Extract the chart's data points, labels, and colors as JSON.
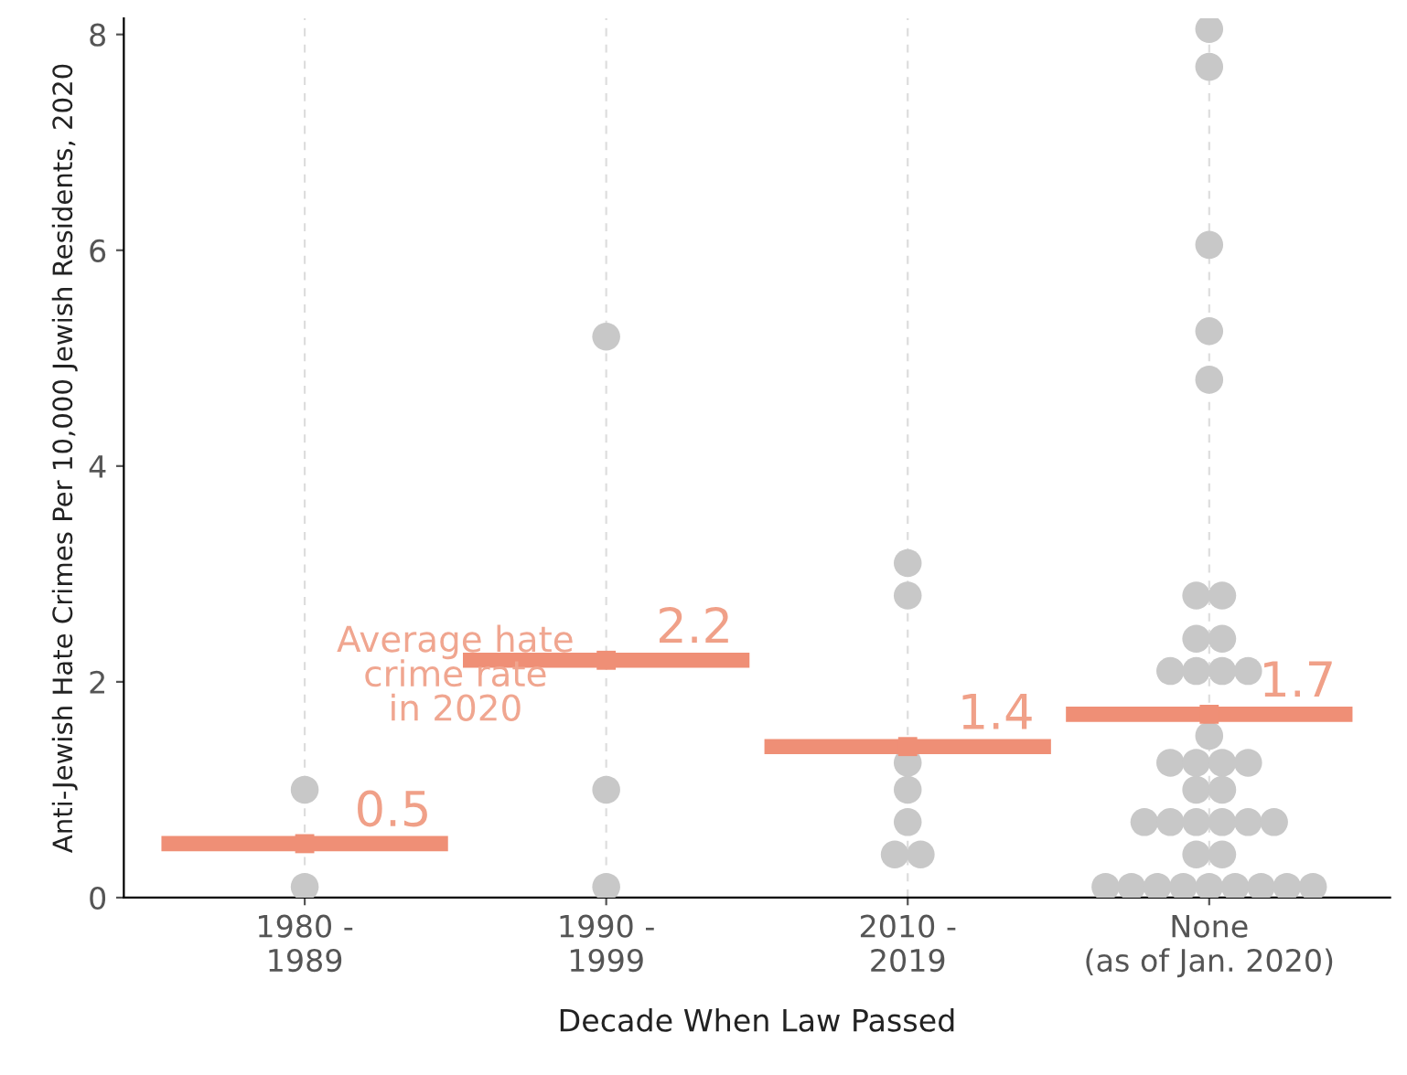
{
  "chart_data": {
    "type": "scatter",
    "xlabel": "Decade When Law Passed",
    "ylabel": "Anti-Jewish Hate Crimes Per 10,000 Jewish Residents, 2020",
    "categories": [
      "1980 -\n1989",
      "1990 -\n1999",
      "2010 -\n2019",
      "None\n(as of Jan. 2020)"
    ],
    "ylim": [
      0,
      8.15
    ],
    "yticks": [
      0,
      2,
      4,
      6,
      8
    ],
    "grid": "x",
    "annotations": [
      "Average hate\ncrime rate\nin 2020"
    ],
    "series": [
      {
        "type": "scatter",
        "color": "#c8c8c8",
        "marker": "circle",
        "x": [
          "1980 -\n1989",
          "1980 -\n1989",
          "1990 -\n1999",
          "1990 -\n1999",
          "1990 -\n1999",
          "2010 -\n2019",
          "2010 -\n2019",
          "2010 -\n2019",
          "2010 -\n2019",
          "2010 -\n2019",
          "2010 -\n2019",
          "2010 -\n2019",
          "None\n(as of Jan. 2020)",
          "None\n(as of Jan. 2020)",
          "None\n(as of Jan. 2020)",
          "None\n(as of Jan. 2020)",
          "None\n(as of Jan. 2020)",
          "None\n(as of Jan. 2020)",
          "None\n(as of Jan. 2020)",
          "None\n(as of Jan. 2020)",
          "None\n(as of Jan. 2020)",
          "None\n(as of Jan. 2020)",
          "None\n(as of Jan. 2020)",
          "None\n(as of Jan. 2020)",
          "None\n(as of Jan. 2020)",
          "None\n(as of Jan. 2020)",
          "None\n(as of Jan. 2020)",
          "None\n(as of Jan. 2020)",
          "None\n(as of Jan. 2020)",
          "None\n(as of Jan. 2020)",
          "None\n(as of Jan. 2020)",
          "None\n(as of Jan. 2020)",
          "None\n(as of Jan. 2020)",
          "None\n(as of Jan. 2020)",
          "None\n(as of Jan. 2020)",
          "None\n(as of Jan. 2020)",
          "None\n(as of Jan. 2020)",
          "None\n(as of Jan. 2020)",
          "None\n(as of Jan. 2020)",
          "None\n(as of Jan. 2020)",
          "None\n(as of Jan. 2020)",
          "None\n(as of Jan. 2020)",
          "None\n(as of Jan. 2020)",
          "None\n(as of Jan. 2020)",
          "None\n(as of Jan. 2020)",
          "None\n(as of Jan. 2020)",
          "None\n(as of Jan. 2020)",
          "None\n(as of Jan. 2020)",
          "None\n(as of Jan. 2020)"
        ],
        "values": [
          1.0,
          0.1,
          5.2,
          1.0,
          0.1,
          3.1,
          2.8,
          1.25,
          1.0,
          0.7,
          0.4,
          0.4,
          8.05,
          7.7,
          6.05,
          5.25,
          4.8,
          2.8,
          2.8,
          2.4,
          2.4,
          2.1,
          2.1,
          2.1,
          2.1,
          1.5,
          1.25,
          1.25,
          1.25,
          1.25,
          1.0,
          1.0,
          0.7,
          0.7,
          0.7,
          0.7,
          0.7,
          0.7,
          0.4,
          0.4,
          0.1,
          0.1,
          0.1,
          0.1,
          0.1,
          0.1,
          0.1,
          0.1,
          0.1
        ]
      },
      {
        "type": "line",
        "color": "#ef8f76",
        "marker": "square",
        "data_labels": true,
        "values": [
          0.5,
          null,
          null,
          null
        ]
      },
      {
        "type": "line",
        "color": "#ef8f76",
        "marker": "square",
        "data_labels": true,
        "values": [
          null,
          2.2,
          null,
          null
        ]
      },
      {
        "type": "line",
        "color": "#ef8f76",
        "marker": "square",
        "data_labels": true,
        "values": [
          null,
          null,
          1.4,
          null
        ]
      },
      {
        "type": "line",
        "color": "#ef8f76",
        "marker": "square",
        "data_labels": true,
        "values": [
          null,
          null,
          null,
          1.7
        ]
      }
    ]
  }
}
